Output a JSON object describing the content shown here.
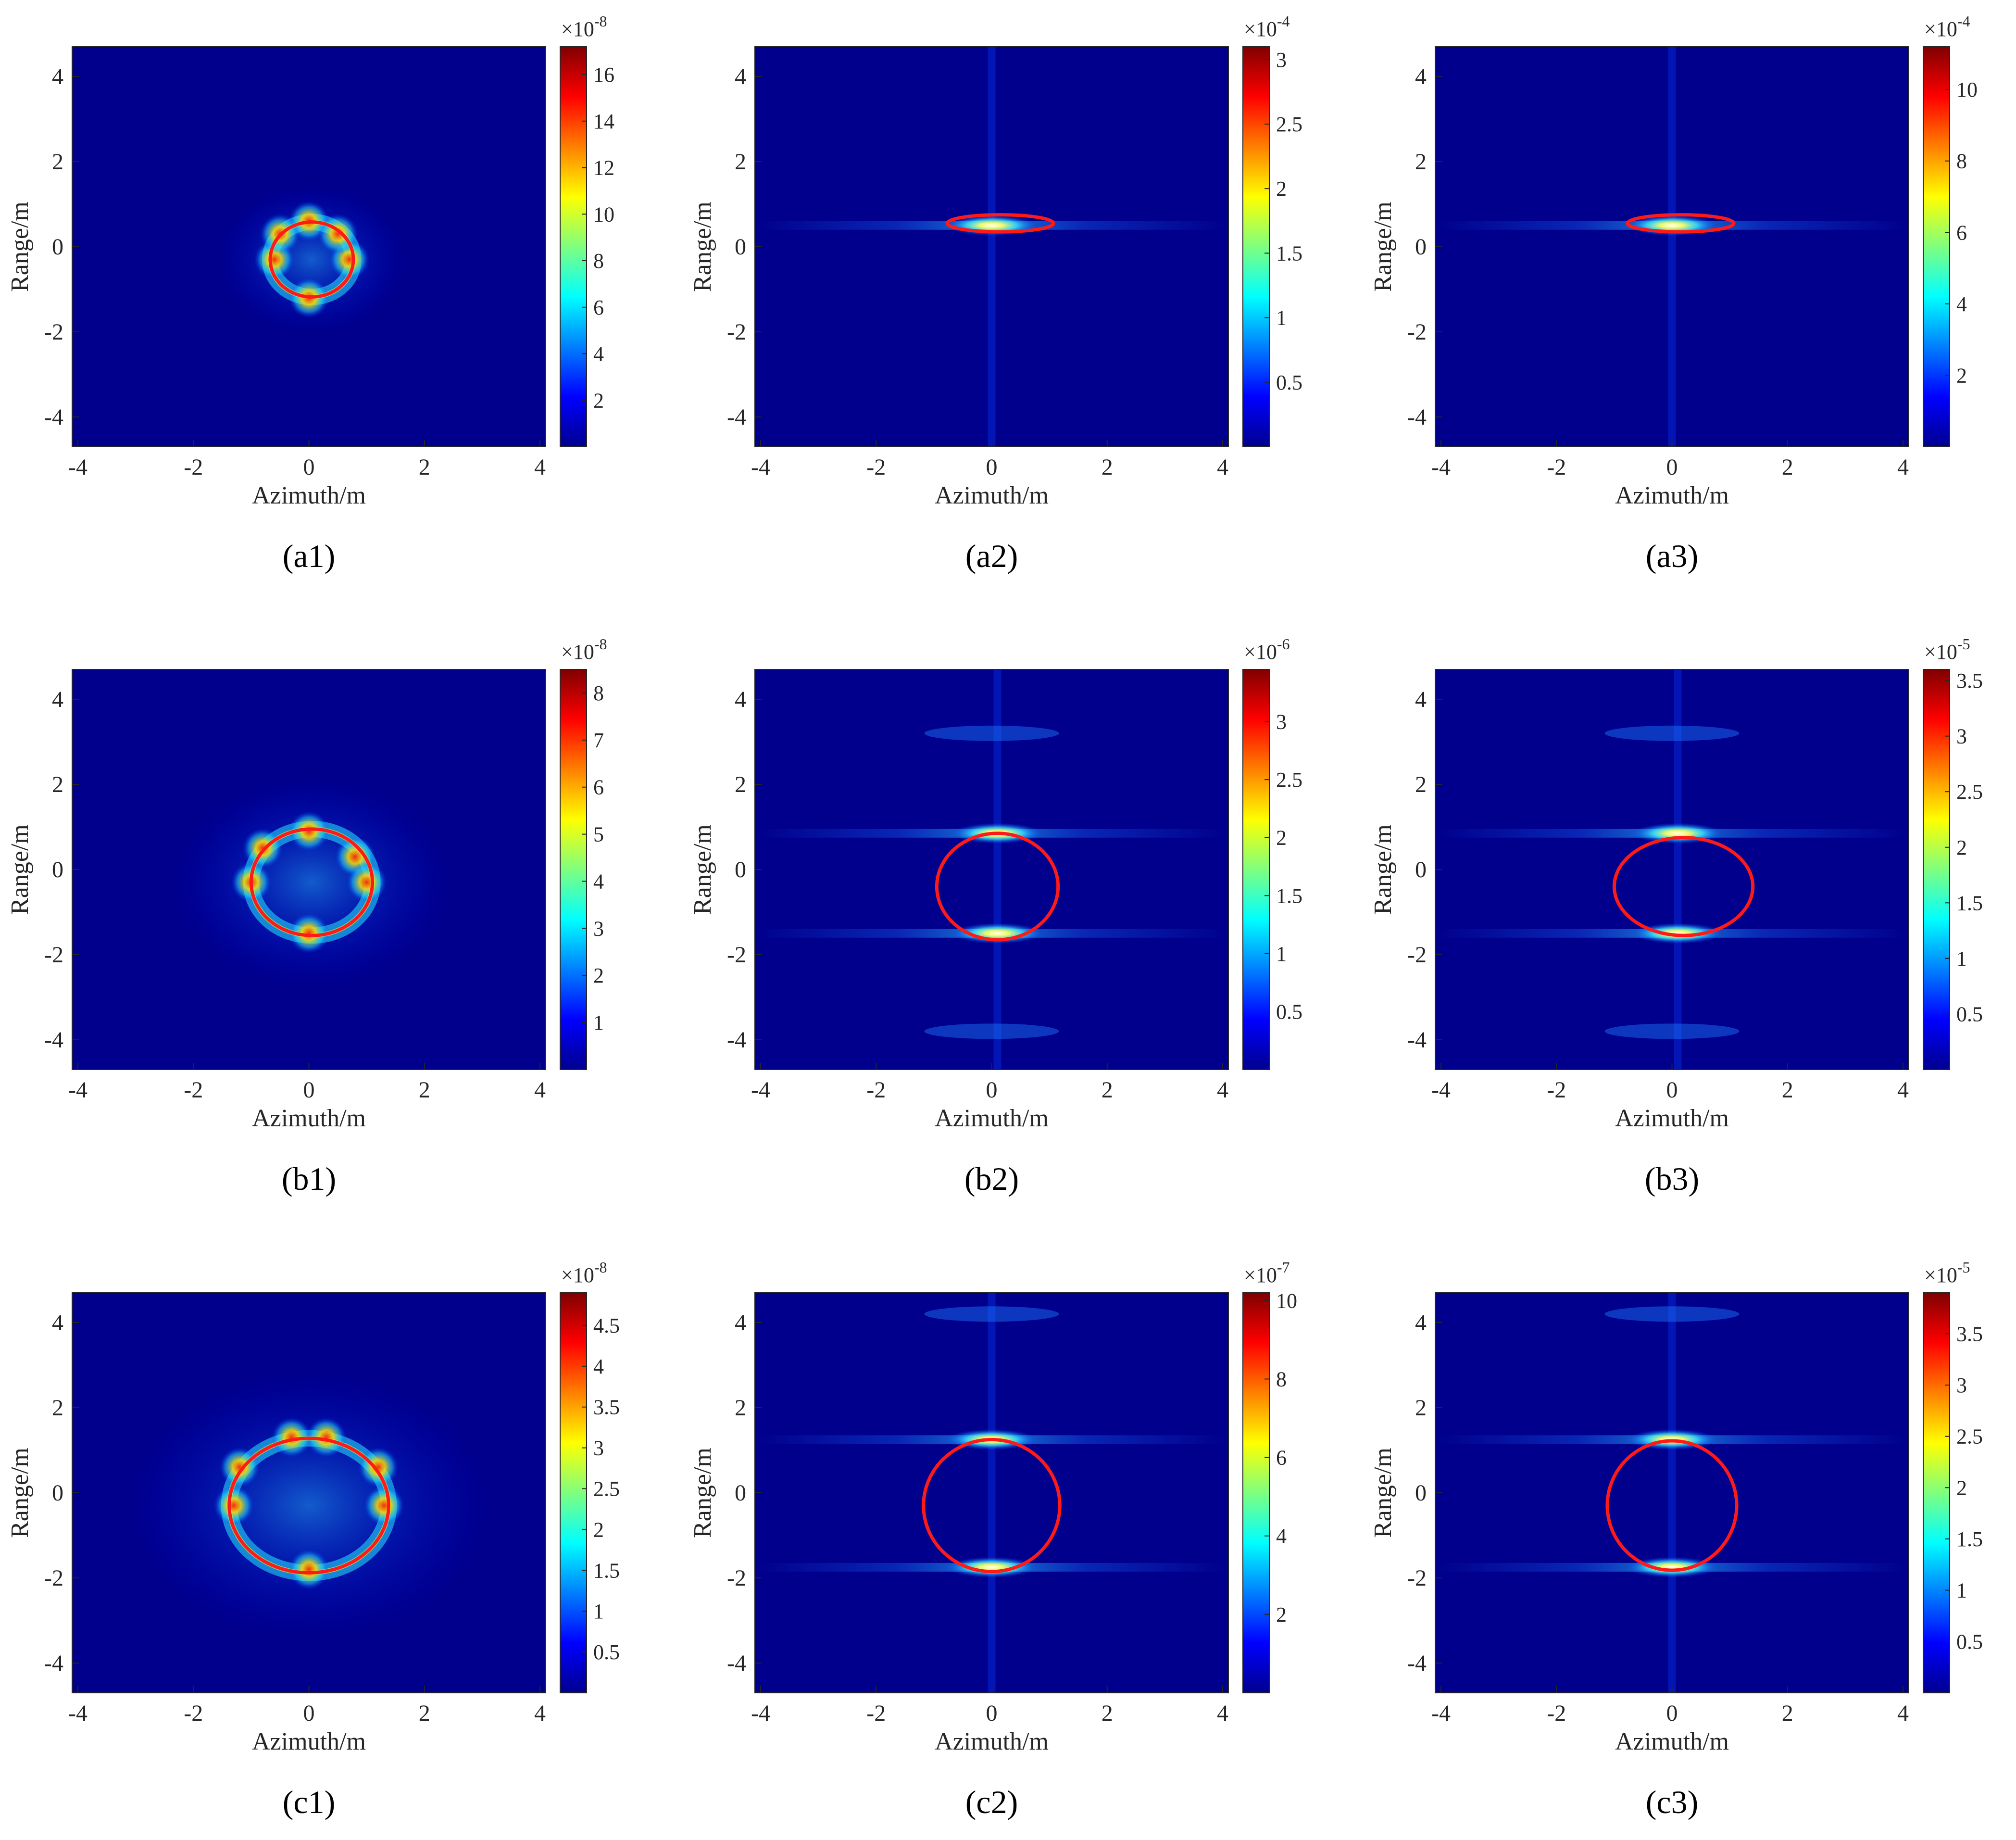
{
  "figure": {
    "panels": [
      "a1",
      "a2",
      "a3",
      "b1",
      "b2",
      "b3",
      "c1",
      "c2",
      "c3"
    ]
  },
  "chart_data": [
    {
      "id": "a1",
      "type": "heatmap",
      "caption": "(a1)",
      "xlabel": "Azimuth/m",
      "ylabel": "Range/m",
      "xlim": [
        -4.1,
        4.1
      ],
      "ylim": [
        -4.7,
        4.7
      ],
      "xticks": [
        -4,
        -2,
        0,
        2,
        4
      ],
      "yticks": [
        -4,
        -2,
        0,
        2,
        4
      ],
      "colorbar": {
        "exponent": "-8",
        "max": 17.2,
        "ticks": [
          2,
          4,
          6,
          8,
          10,
          12,
          14,
          16
        ]
      },
      "pattern": "ring",
      "hotspots": [
        [
          0.0,
          0.6
        ],
        [
          0.0,
          -1.2
        ],
        [
          -0.6,
          -0.3
        ],
        [
          0.7,
          -0.3
        ],
        [
          -0.5,
          0.3
        ],
        [
          0.5,
          0.3
        ]
      ],
      "ellipse": {
        "cx": 0.05,
        "cy": -0.3,
        "rx": 0.72,
        "ry": 0.88,
        "color": "#ff1a1a"
      }
    },
    {
      "id": "a2",
      "type": "heatmap",
      "caption": "(a2)",
      "xlabel": "Azimuth/m",
      "ylabel": "Range/m",
      "xlim": [
        -4.1,
        4.1
      ],
      "ylim": [
        -4.7,
        4.7
      ],
      "xticks": [
        -4,
        -2,
        0,
        2,
        4
      ],
      "yticks": [
        -4,
        -2,
        0,
        2,
        4
      ],
      "colorbar": {
        "exponent": "-4",
        "max": 3.1,
        "ticks": [
          0.5,
          1,
          1.5,
          2,
          2.5,
          3
        ]
      },
      "pattern": "points",
      "hotspots": [
        [
          0.0,
          0.5
        ]
      ],
      "stripes": [
        0.5
      ],
      "ellipse": {
        "cx": 0.15,
        "cy": 0.55,
        "rx": 0.92,
        "ry": 0.2,
        "color": "#ff1a1a"
      }
    },
    {
      "id": "a3",
      "type": "heatmap",
      "caption": "(a3)",
      "xlabel": "Azimuth/m",
      "ylabel": "Range/m",
      "xlim": [
        -4.1,
        4.1
      ],
      "ylim": [
        -4.7,
        4.7
      ],
      "xticks": [
        -4,
        -2,
        0,
        2,
        4
      ],
      "yticks": [
        -4,
        -2,
        0,
        2,
        4
      ],
      "colorbar": {
        "exponent": "-4",
        "max": 11.2,
        "ticks": [
          2,
          4,
          6,
          8,
          10
        ]
      },
      "pattern": "points",
      "hotspots": [
        [
          0.0,
          0.5
        ]
      ],
      "stripes": [
        0.5
      ],
      "ellipse": {
        "cx": 0.15,
        "cy": 0.55,
        "rx": 0.92,
        "ry": 0.2,
        "color": "#ff1a1a"
      }
    },
    {
      "id": "b1",
      "type": "heatmap",
      "caption": "(b1)",
      "xlabel": "Azimuth/m",
      "ylabel": "Range/m",
      "xlim": [
        -4.1,
        4.1
      ],
      "ylim": [
        -4.7,
        4.7
      ],
      "xticks": [
        -4,
        -2,
        0,
        2,
        4
      ],
      "yticks": [
        -4,
        -2,
        0,
        2,
        4
      ],
      "colorbar": {
        "exponent": "-8",
        "max": 8.5,
        "ticks": [
          1,
          2,
          3,
          4,
          5,
          6,
          7,
          8
        ]
      },
      "pattern": "ring",
      "hotspots": [
        [
          -0.8,
          0.5
        ],
        [
          0.8,
          0.3
        ],
        [
          0.0,
          0.9
        ],
        [
          0.0,
          -1.5
        ],
        [
          -1.0,
          -0.3
        ],
        [
          1.0,
          -0.3
        ]
      ],
      "ellipse": {
        "cx": 0.05,
        "cy": -0.3,
        "rx": 1.05,
        "ry": 1.25,
        "color": "#ff1a1a"
      }
    },
    {
      "id": "b2",
      "type": "heatmap",
      "caption": "(b2)",
      "xlabel": "Azimuth/m",
      "ylabel": "Range/m",
      "xlim": [
        -4.1,
        4.1
      ],
      "ylim": [
        -4.7,
        4.7
      ],
      "xticks": [
        -4,
        -2,
        0,
        2,
        4
      ],
      "yticks": [
        -4,
        -2,
        0,
        2,
        4
      ],
      "colorbar": {
        "exponent": "-6",
        "max": 3.45,
        "ticks": [
          0.5,
          1,
          1.5,
          2,
          2.5,
          3
        ]
      },
      "pattern": "points",
      "hotspots": [
        [
          0.1,
          0.85
        ],
        [
          0.1,
          -1.5
        ]
      ],
      "faint": [
        [
          0.0,
          3.2
        ],
        [
          0.0,
          -3.8
        ]
      ],
      "stripes": [
        0.85,
        -1.5
      ],
      "ellipse": {
        "cx": 0.1,
        "cy": -0.4,
        "rx": 1.05,
        "ry": 1.25,
        "color": "#ff1a1a"
      }
    },
    {
      "id": "b3",
      "type": "heatmap",
      "caption": "(b3)",
      "xlabel": "Azimuth/m",
      "ylabel": "Range/m",
      "xlim": [
        -4.1,
        4.1
      ],
      "ylim": [
        -4.7,
        4.7
      ],
      "xticks": [
        -4,
        -2,
        0,
        2,
        4
      ],
      "yticks": [
        -4,
        -2,
        0,
        2,
        4
      ],
      "colorbar": {
        "exponent": "-5",
        "max": 3.6,
        "ticks": [
          0.5,
          1,
          1.5,
          2,
          2.5,
          3,
          3.5
        ]
      },
      "pattern": "points",
      "hotspots": [
        [
          0.1,
          0.85
        ],
        [
          0.1,
          -1.5
        ]
      ],
      "faint": [
        [
          0.0,
          3.2
        ],
        [
          0.0,
          -3.8
        ]
      ],
      "stripes": [
        0.85,
        -1.5
      ],
      "ellipse": {
        "cx": 0.2,
        "cy": -0.4,
        "rx": 1.2,
        "ry": 1.15,
        "color": "#ff1a1a"
      }
    },
    {
      "id": "c1",
      "type": "heatmap",
      "caption": "(c1)",
      "xlabel": "Azimuth/m",
      "ylabel": "Range/m",
      "xlim": [
        -4.1,
        4.1
      ],
      "ylim": [
        -4.7,
        4.7
      ],
      "xticks": [
        -4,
        -2,
        0,
        2,
        4
      ],
      "yticks": [
        -4,
        -2,
        0,
        2,
        4
      ],
      "colorbar": {
        "exponent": "-8",
        "max": 4.9,
        "ticks": [
          0.5,
          1,
          1.5,
          2,
          2.5,
          3,
          3.5,
          4,
          4.5
        ]
      },
      "pattern": "ring",
      "hotspots": [
        [
          -1.2,
          0.6
        ],
        [
          1.2,
          0.6
        ],
        [
          -0.3,
          1.3
        ],
        [
          0.3,
          1.3
        ],
        [
          0.0,
          -1.8
        ],
        [
          -1.3,
          -0.3
        ],
        [
          1.3,
          -0.3
        ]
      ],
      "ellipse": {
        "cx": 0.0,
        "cy": -0.3,
        "rx": 1.38,
        "ry": 1.58,
        "color": "#ff1a1a"
      }
    },
    {
      "id": "c2",
      "type": "heatmap",
      "caption": "(c2)",
      "xlabel": "Azimuth/m",
      "ylabel": "Range/m",
      "xlim": [
        -4.1,
        4.1
      ],
      "ylim": [
        -4.7,
        4.7
      ],
      "xticks": [
        -4,
        -2,
        0,
        2,
        4
      ],
      "yticks": [
        -4,
        -2,
        0,
        2,
        4
      ],
      "colorbar": {
        "exponent": "-7",
        "max": 10.2,
        "ticks": [
          2,
          4,
          6,
          8,
          10
        ]
      },
      "pattern": "points",
      "hotspots": [
        [
          0.0,
          1.25
        ],
        [
          0.0,
          -1.75
        ]
      ],
      "faint": [
        [
          0.0,
          4.2
        ]
      ],
      "stripes": [
        1.25,
        -1.75
      ],
      "ellipse": {
        "cx": 0.0,
        "cy": -0.3,
        "rx": 1.18,
        "ry": 1.55,
        "color": "#ff1a1a"
      }
    },
    {
      "id": "c3",
      "type": "heatmap",
      "caption": "(c3)",
      "xlabel": "Azimuth/m",
      "ylabel": "Range/m",
      "xlim": [
        -4.1,
        4.1
      ],
      "ylim": [
        -4.7,
        4.7
      ],
      "xticks": [
        -4,
        -2,
        0,
        2,
        4
      ],
      "yticks": [
        -4,
        -2,
        0,
        2,
        4
      ],
      "colorbar": {
        "exponent": "-5",
        "max": 3.9,
        "ticks": [
          0.5,
          1,
          1.5,
          2,
          2.5,
          3,
          3.5
        ]
      },
      "pattern": "points",
      "hotspots": [
        [
          0.0,
          1.25
        ],
        [
          0.0,
          -1.75
        ]
      ],
      "faint": [
        [
          0.0,
          4.2
        ]
      ],
      "stripes": [
        1.25,
        -1.75
      ],
      "ellipse": {
        "cx": 0.0,
        "cy": -0.3,
        "rx": 1.12,
        "ry": 1.52,
        "color": "#ff1a1a"
      }
    }
  ]
}
